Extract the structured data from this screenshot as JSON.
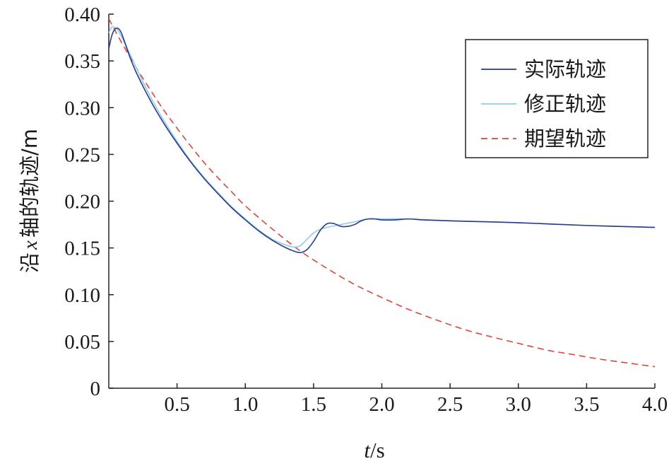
{
  "chart_data": {
    "type": "line",
    "xlabel": "t/s",
    "xlabel_italic": "t",
    "xlabel_rest": "/s",
    "ylabel": "沿 x 轴的轨迹/m",
    "ylabel_parts": [
      "沿",
      "x",
      "轴的轨迹/m"
    ],
    "xlim": [
      0,
      4.0
    ],
    "ylim": [
      0,
      0.4
    ],
    "x_ticks": [
      0.5,
      1.0,
      1.5,
      2.0,
      2.5,
      3.0,
      3.5,
      4.0
    ],
    "x_tick_labels": [
      "0.5",
      "1.0",
      "1.5",
      "2.0",
      "2.5",
      "3.0",
      "3.5",
      "4.0"
    ],
    "y_ticks": [
      0,
      0.05,
      0.1,
      0.15,
      0.2,
      0.25,
      0.3,
      0.35,
      0.4
    ],
    "y_tick_labels": [
      "0",
      "0.05",
      "0.10",
      "0.15",
      "0.20",
      "0.25",
      "0.30",
      "0.35",
      "0.40"
    ],
    "grid": false,
    "legend_position": "top-right",
    "series": [
      {
        "name": "实际轨迹",
        "color": "#2b3a8c",
        "dash": "solid",
        "x": [
          0,
          0.02,
          0.04,
          0.06,
          0.08,
          0.1,
          0.15,
          0.2,
          0.3,
          0.4,
          0.5,
          0.6,
          0.7,
          0.8,
          0.9,
          1.0,
          1.1,
          1.2,
          1.3,
          1.35,
          1.4,
          1.45,
          1.5,
          1.55,
          1.6,
          1.65,
          1.7,
          1.75,
          1.8,
          1.85,
          1.9,
          1.95,
          2.0,
          2.1,
          2.2,
          2.3,
          2.5,
          3.0,
          3.5,
          4.0
        ],
        "y": [
          0.363,
          0.376,
          0.383,
          0.385,
          0.383,
          0.377,
          0.356,
          0.338,
          0.309,
          0.284,
          0.262,
          0.242,
          0.224,
          0.208,
          0.193,
          0.18,
          0.168,
          0.158,
          0.15,
          0.147,
          0.145,
          0.148,
          0.157,
          0.169,
          0.176,
          0.176,
          0.173,
          0.173,
          0.175,
          0.179,
          0.181,
          0.181,
          0.18,
          0.18,
          0.181,
          0.18,
          0.179,
          0.177,
          0.174,
          0.172
        ]
      },
      {
        "name": "修正轨迹",
        "color": "#8ecbe8",
        "dash": "solid",
        "x": [
          0,
          0.02,
          0.04,
          0.06,
          0.1,
          0.15,
          0.2,
          0.3,
          0.4,
          0.5,
          0.6,
          0.7,
          0.8,
          0.9,
          1.0,
          1.1,
          1.2,
          1.3,
          1.35,
          1.4,
          1.45,
          1.5,
          1.55,
          1.6,
          1.7,
          1.8,
          1.9,
          2.0,
          2.2,
          2.5,
          3.0,
          3.5,
          4.0
        ],
        "y": [
          0.38,
          0.386,
          0.386,
          0.384,
          0.374,
          0.359,
          0.343,
          0.313,
          0.287,
          0.264,
          0.243,
          0.225,
          0.209,
          0.194,
          0.181,
          0.169,
          0.159,
          0.153,
          0.151,
          0.152,
          0.159,
          0.166,
          0.17,
          0.172,
          0.175,
          0.178,
          0.181,
          0.181,
          0.181,
          0.179,
          0.177,
          0.174,
          0.172
        ]
      },
      {
        "name": "期望轨迹",
        "color": "#d9463b",
        "dash": "dashed",
        "x": [
          0,
          0.1,
          0.2,
          0.3,
          0.4,
          0.5,
          0.6,
          0.7,
          0.8,
          0.9,
          1.0,
          1.2,
          1.4,
          1.6,
          1.8,
          2.0,
          2.2,
          2.4,
          2.6,
          2.8,
          3.0,
          3.2,
          3.4,
          3.6,
          3.8,
          4.0
        ],
        "y": [
          0.395,
          0.368,
          0.343,
          0.32,
          0.298,
          0.278,
          0.259,
          0.241,
          0.225,
          0.21,
          0.195,
          0.17,
          0.147,
          0.128,
          0.111,
          0.097,
          0.084,
          0.073,
          0.063,
          0.055,
          0.048,
          0.041,
          0.036,
          0.031,
          0.027,
          0.023
        ]
      }
    ]
  }
}
